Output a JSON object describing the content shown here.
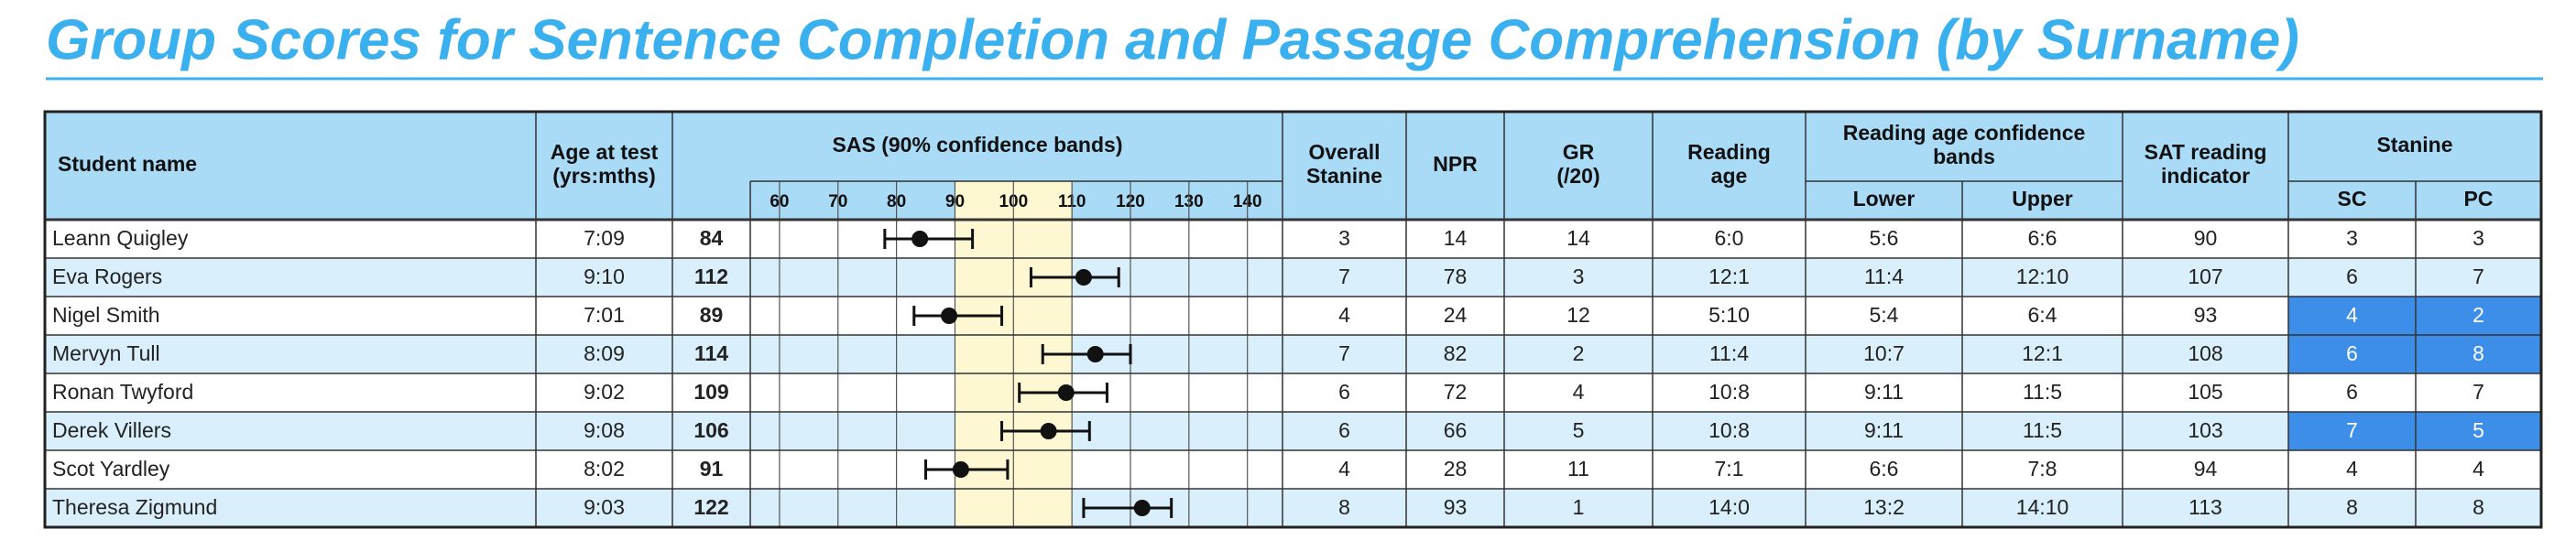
{
  "header": {
    "title": "Group Scores for Sentence Completion and Passage Comprehension (by Surname)"
  },
  "table": {
    "columns": [
      [
        "Student name"
      ],
      [
        "Age at test",
        "(yrs:mths)"
      ],
      [
        "SAS (90% confidence bands)"
      ],
      [
        "Overall",
        "Stanine"
      ],
      [
        "NPR"
      ],
      [
        "GR",
        "(/20)"
      ],
      [
        "Reading",
        "age"
      ],
      [
        "Reading age confidence",
        "bands"
      ],
      [
        "SAT reading",
        "indicator"
      ],
      [
        "Stanine"
      ]
    ],
    "subheaders": [
      "Lower",
      "Upper",
      "SC",
      "PC"
    ],
    "sas_axis": {
      "xlim": [
        55,
        146
      ],
      "xticks": [
        60,
        70,
        80,
        90,
        100,
        110,
        120,
        130,
        140
      ],
      "shaded_range": [
        90,
        110
      ],
      "shade_color": "#fdf8d2"
    },
    "highlight_color": "#3d8ee8",
    "rows": [
      {
        "name": "Leann Quigley",
        "age": "7:09",
        "sas": 84,
        "band": [
          78,
          93
        ],
        "stanine": 3,
        "npr": 14,
        "gr": 14,
        "reading_age": "6:0",
        "ra_lower": "5:6",
        "ra_upper": "6:6",
        "sat": 90,
        "sc": 3,
        "pc": 3,
        "highlight": false
      },
      {
        "name": "Eva Rogers",
        "age": "9:10",
        "sas": 112,
        "band": [
          103,
          118
        ],
        "stanine": 7,
        "npr": 78,
        "gr": 3,
        "reading_age": "12:1",
        "ra_lower": "11:4",
        "ra_upper": "12:10",
        "sat": 107,
        "sc": 6,
        "pc": 7,
        "highlight": false
      },
      {
        "name": "Nigel Smith",
        "age": "7:01",
        "sas": 89,
        "band": [
          83,
          98
        ],
        "stanine": 4,
        "npr": 24,
        "gr": 12,
        "reading_age": "5:10",
        "ra_lower": "5:4",
        "ra_upper": "6:4",
        "sat": 93,
        "sc": 4,
        "pc": 2,
        "highlight": true
      },
      {
        "name": "Mervyn Tull",
        "age": "8:09",
        "sas": 114,
        "band": [
          105,
          120
        ],
        "stanine": 7,
        "npr": 82,
        "gr": 2,
        "reading_age": "11:4",
        "ra_lower": "10:7",
        "ra_upper": "12:1",
        "sat": 108,
        "sc": 6,
        "pc": 8,
        "highlight": true
      },
      {
        "name": "Ronan Twyford",
        "age": "9:02",
        "sas": 109,
        "band": [
          101,
          116
        ],
        "stanine": 6,
        "npr": 72,
        "gr": 4,
        "reading_age": "10:8",
        "ra_lower": "9:11",
        "ra_upper": "11:5",
        "sat": 105,
        "sc": 6,
        "pc": 7,
        "highlight": false
      },
      {
        "name": "Derek Villers",
        "age": "9:08",
        "sas": 106,
        "band": [
          98,
          113
        ],
        "stanine": 6,
        "npr": 66,
        "gr": 5,
        "reading_age": "10:8",
        "ra_lower": "9:11",
        "ra_upper": "11:5",
        "sat": 103,
        "sc": 7,
        "pc": 5,
        "highlight": true
      },
      {
        "name": "Scot Yardley",
        "age": "8:02",
        "sas": 91,
        "band": [
          85,
          99
        ],
        "stanine": 4,
        "npr": 28,
        "gr": 11,
        "reading_age": "7:1",
        "ra_lower": "6:6",
        "ra_upper": "7:8",
        "sat": 94,
        "sc": 4,
        "pc": 4,
        "highlight": false
      },
      {
        "name": "Theresa Zigmund",
        "age": "9:03",
        "sas": 122,
        "band": [
          112,
          127
        ],
        "stanine": 8,
        "npr": 93,
        "gr": 1,
        "reading_age": "14:0",
        "ra_lower": "13:2",
        "ra_upper": "14:10",
        "sat": 113,
        "sc": 8,
        "pc": 8,
        "highlight": false
      }
    ]
  }
}
